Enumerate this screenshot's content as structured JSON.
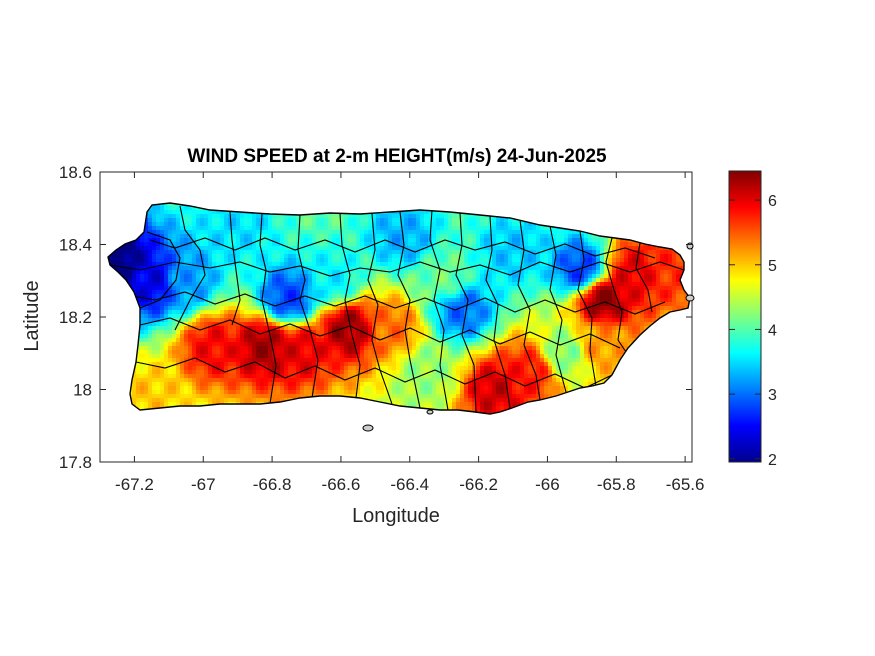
{
  "chart_data": {
    "type": "heatmap",
    "title": "WIND SPEED at 2-m HEIGHT(m/s) 24-Jun-2025",
    "xlabel": "Longitude",
    "ylabel": "Latitude",
    "xlim": [
      -67.3,
      -65.58
    ],
    "ylim": [
      17.8,
      18.6
    ],
    "x_ticks": [
      -67.2,
      -67,
      -66.8,
      -66.6,
      -66.4,
      -66.2,
      -66,
      -65.8,
      -65.6
    ],
    "x_tick_labels": [
      "-67.2",
      "-67",
      "-66.8",
      "-66.6",
      "-66.4",
      "-66.2",
      "-66",
      "-65.8",
      "-65.6"
    ],
    "y_ticks": [
      17.8,
      18,
      18.2,
      18.4,
      18.6
    ],
    "y_tick_labels": [
      "17.8",
      "18",
      "18.2",
      "18.4",
      "18.6"
    ],
    "colorbar": {
      "colormap": "jet",
      "range": [
        1.95,
        6.45
      ],
      "ticks": [
        2,
        3,
        4,
        5,
        6
      ],
      "tick_labels": [
        "2",
        "3",
        "4",
        "5",
        "6"
      ]
    },
    "grid": false,
    "hotspots": [
      {
        "lon": -67.25,
        "lat": 18.36,
        "value": 1.9
      },
      {
        "lon": -67.15,
        "lat": 18.3,
        "value": 2.4
      },
      {
        "lon": -67.05,
        "lat": 18.3,
        "value": 3.2
      },
      {
        "lon": -66.75,
        "lat": 18.25,
        "value": 2.8
      },
      {
        "lon": -66.62,
        "lat": 18.3,
        "value": 3.6
      },
      {
        "lon": -66.42,
        "lat": 18.42,
        "value": 3.3
      },
      {
        "lon": -66.25,
        "lat": 18.22,
        "value": 3.0
      },
      {
        "lon": -66.1,
        "lat": 18.38,
        "value": 3.4
      },
      {
        "lon": -65.9,
        "lat": 18.33,
        "value": 2.8
      },
      {
        "lon": -65.84,
        "lat": 18.25,
        "value": 6.4
      },
      {
        "lon": -65.75,
        "lat": 18.32,
        "value": 6.0
      },
      {
        "lon": -65.64,
        "lat": 18.33,
        "value": 5.7
      },
      {
        "lon": -66.97,
        "lat": 18.12,
        "value": 5.9
      },
      {
        "lon": -66.82,
        "lat": 18.12,
        "value": 6.3
      },
      {
        "lon": -66.72,
        "lat": 18.11,
        "value": 6.0
      },
      {
        "lon": -66.58,
        "lat": 18.17,
        "value": 6.3
      },
      {
        "lon": -66.45,
        "lat": 18.17,
        "value": 5.4
      },
      {
        "lon": -66.15,
        "lat": 18.0,
        "value": 6.1
      },
      {
        "lon": -66.05,
        "lat": 18.05,
        "value": 5.8
      },
      {
        "lon": -67.17,
        "lat": 17.98,
        "value": 5.0
      },
      {
        "lon": -66.35,
        "lat": 18.05,
        "value": 4.3
      },
      {
        "lon": -65.95,
        "lat": 18.1,
        "value": 4.2
      },
      {
        "lon": -65.85,
        "lat": 18.12,
        "value": 5.2
      },
      {
        "lon": -66.9,
        "lat": 18.45,
        "value": 3.5
      },
      {
        "lon": -66.3,
        "lat": 18.3,
        "value": 4.1
      }
    ],
    "base_value": 4.3
  }
}
